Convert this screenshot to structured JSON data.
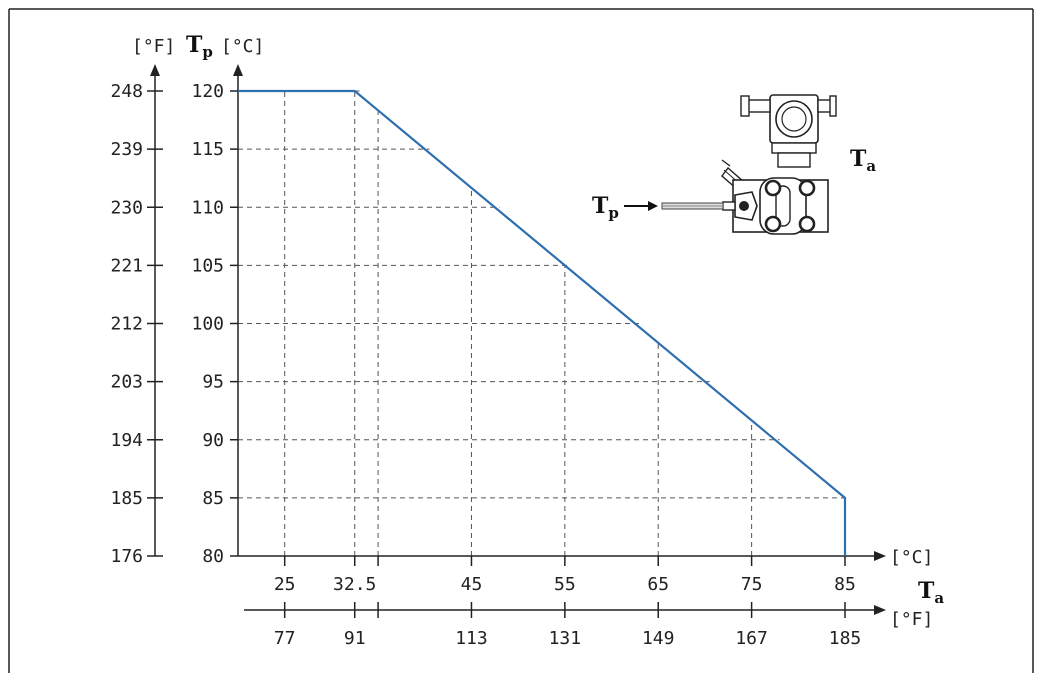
{
  "chart_data": {
    "type": "line",
    "title": "",
    "y_symbol": "T",
    "y_symbol_sub": "p",
    "x_symbol": "T",
    "x_symbol_sub": "a",
    "y_unit_c": "[°C]",
    "y_unit_f": "[°F]",
    "x_unit_c": "[°C]",
    "x_unit_f": "[°F]",
    "xlim": [
      20,
      85
    ],
    "ylim": [
      80,
      120
    ],
    "y_ticks_c": [
      "120",
      "115",
      "110",
      "105",
      "100",
      "95",
      "90",
      "85",
      "80"
    ],
    "y_ticks_f": [
      "248",
      "239",
      "230",
      "221",
      "212",
      "203",
      "194",
      "185",
      "176"
    ],
    "x_ticks_c": [
      "25",
      "32.5",
      "45",
      "55",
      "65",
      "75",
      "85"
    ],
    "x_ticks_f": [
      "77",
      "91",
      "113",
      "131",
      "149",
      "167",
      "185"
    ],
    "x_tick_values": [
      25,
      32.5,
      45,
      55,
      65,
      75,
      85
    ],
    "y_tick_values": [
      120,
      115,
      110,
      105,
      100,
      95,
      90,
      85,
      80
    ],
    "extra_grid_x": [
      35
    ],
    "grid": true,
    "series": [
      {
        "x": [
          20,
          32.5,
          85,
          85
        ],
        "y": [
          120,
          120,
          85,
          80
        ]
      }
    ],
    "inset": {
      "label_tp": "T",
      "label_tp_sub": "p",
      "label_ta": "T",
      "label_ta_sub": "a",
      "icon": "pressure-transmitter-icon"
    },
    "colors": {
      "line": "#2e6fb0",
      "axis": "#222222",
      "grid": "#555555"
    }
  }
}
